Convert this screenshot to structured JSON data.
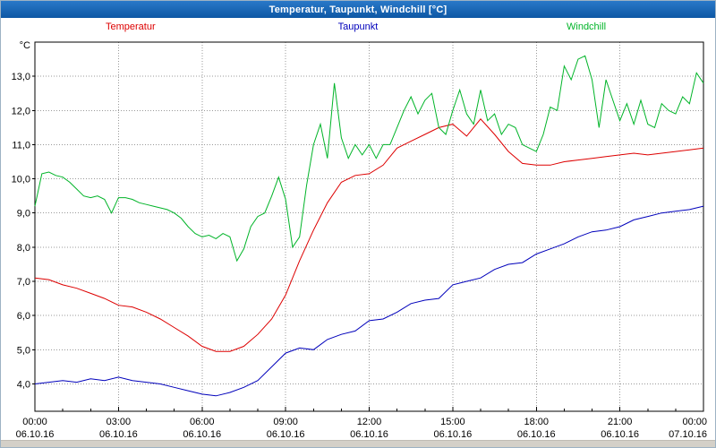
{
  "window": {
    "title": "Temperatur, Taupunkt, Windchill [°C]"
  },
  "colors": {
    "titlebar": "#0d57a4",
    "titlebar_text": "#ffffff",
    "background": "#ffffff",
    "grid": "#999999",
    "axis": "#000000",
    "bottom_strip": "#d4d0c8",
    "temperatur": "#dd0000",
    "taupunkt": "#0000bb",
    "windchill": "#00b428"
  },
  "chart_data": {
    "type": "line",
    "title": "Temperatur, Taupunkt, Windchill [°C]",
    "ylabel": "°C",
    "xlabel": "",
    "grid": true,
    "legend_position": "top",
    "ylim": [
      3.2,
      14.0
    ],
    "xlim": [
      0,
      24
    ],
    "yticks": {
      "values": [
        4,
        5,
        6,
        7,
        8,
        9,
        10,
        11,
        12,
        13
      ],
      "labels": [
        "4,0",
        "5,0",
        "6,0",
        "7,0",
        "8,0",
        "9,0",
        "10,0",
        "11,0",
        "12,0",
        "13,0"
      ]
    },
    "x_major_hours": [
      0,
      3,
      6,
      9,
      12,
      15,
      18,
      21,
      24
    ],
    "x_tick_times": [
      "00:00",
      "03:00",
      "06:00",
      "09:00",
      "12:00",
      "15:00",
      "18:00",
      "21:00",
      "00:00"
    ],
    "x_tick_dates": [
      "06.10.16",
      "06.10.16",
      "06.10.16",
      "06.10.16",
      "06.10.16",
      "06.10.16",
      "06.10.16",
      "06.10.16",
      "07.10.16"
    ],
    "series": [
      {
        "name": "Temperatur",
        "color": "#dd0000",
        "x_start": 0,
        "x_step": 0.5,
        "values": [
          7.1,
          7.05,
          6.9,
          6.8,
          6.65,
          6.5,
          6.3,
          6.25,
          6.1,
          5.9,
          5.65,
          5.4,
          5.1,
          4.95,
          4.95,
          5.1,
          5.45,
          5.9,
          6.6,
          7.6,
          8.5,
          9.3,
          9.9,
          10.1,
          10.15,
          10.4,
          10.9,
          11.1,
          11.3,
          11.5,
          11.6,
          11.25,
          11.75,
          11.3,
          10.8,
          10.45,
          10.4,
          10.4,
          10.5,
          10.55,
          10.6,
          10.65,
          10.7,
          10.75,
          10.7,
          10.75,
          10.8,
          10.85,
          10.9
        ]
      },
      {
        "name": "Taupunkt",
        "color": "#0000bb",
        "x_start": 0,
        "x_step": 0.5,
        "values": [
          4.0,
          4.05,
          4.1,
          4.05,
          4.15,
          4.1,
          4.2,
          4.1,
          4.05,
          4.0,
          3.9,
          3.8,
          3.7,
          3.65,
          3.75,
          3.9,
          4.1,
          4.5,
          4.9,
          5.05,
          5.0,
          5.3,
          5.45,
          5.55,
          5.85,
          5.9,
          6.1,
          6.35,
          6.45,
          6.5,
          6.9,
          7.0,
          7.1,
          7.35,
          7.5,
          7.55,
          7.8,
          7.95,
          8.1,
          8.3,
          8.45,
          8.5,
          8.6,
          8.8,
          8.9,
          9.0,
          9.05,
          9.1,
          9.2
        ]
      },
      {
        "name": "Windchill",
        "color": "#00b428",
        "x_start": 0,
        "x_step": 0.25,
        "values": [
          9.2,
          10.15,
          10.2,
          10.1,
          10.05,
          9.9,
          9.7,
          9.5,
          9.45,
          9.5,
          9.4,
          9.0,
          9.45,
          9.45,
          9.4,
          9.3,
          9.25,
          9.2,
          9.15,
          9.1,
          9.0,
          8.85,
          8.6,
          8.4,
          8.3,
          8.35,
          8.25,
          8.4,
          8.3,
          7.6,
          7.95,
          8.6,
          8.9,
          9.0,
          9.5,
          10.05,
          9.4,
          8.0,
          8.3,
          9.8,
          11.0,
          11.6,
          10.6,
          12.8,
          11.2,
          10.6,
          11.0,
          10.7,
          11.0,
          10.6,
          11.0,
          11.0,
          11.5,
          12.0,
          12.4,
          11.9,
          12.3,
          12.5,
          11.5,
          11.3,
          12.0,
          12.6,
          11.9,
          11.6,
          12.6,
          11.7,
          11.9,
          11.3,
          11.6,
          11.5,
          11.0,
          10.9,
          10.8,
          11.3,
          12.1,
          12.0,
          13.3,
          12.9,
          13.5,
          13.6,
          12.9,
          11.5,
          12.9,
          12.3,
          11.7,
          12.2,
          11.6,
          12.3,
          11.6,
          11.5,
          12.2,
          12.0,
          11.9,
          12.4,
          12.2,
          13.1,
          12.8
        ]
      }
    ]
  }
}
